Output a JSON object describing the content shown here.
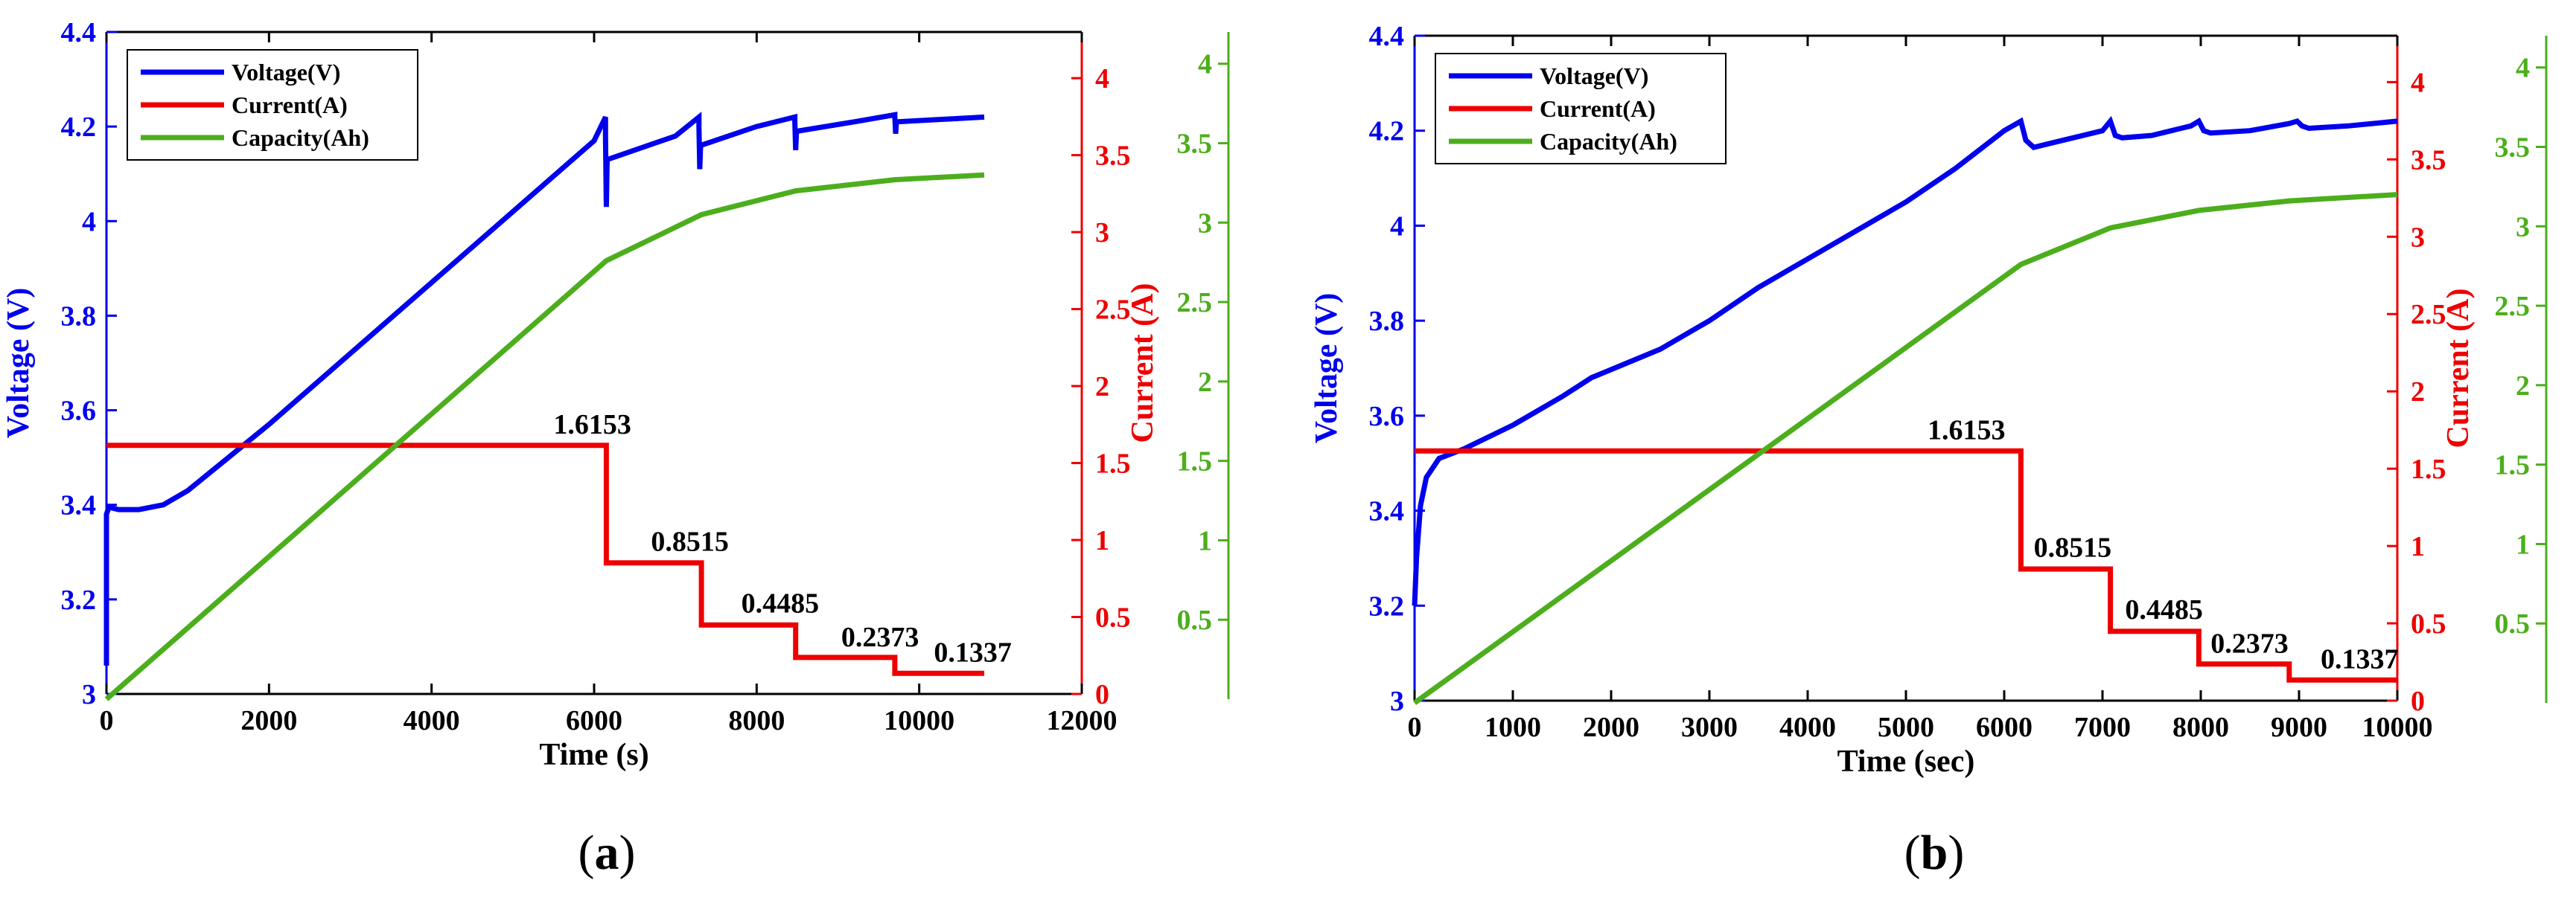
{
  "colors": {
    "voltage": "#0000ee",
    "current": "#ee0000",
    "capacity": "#4cae1c",
    "axis": "#000000"
  },
  "panels": [
    {
      "label_open": "(",
      "label_letter": "a",
      "label_close": ")"
    },
    {
      "label_open": "(",
      "label_letter": "b",
      "label_close": ")"
    }
  ],
  "chart_data": [
    {
      "type": "line",
      "panel": "a",
      "xlabel": "Time (s)",
      "ylabel": "Voltage (V)",
      "y2label": "Current (A)",
      "xlim": [
        0,
        12000
      ],
      "ylim": [
        3,
        4.4
      ],
      "y2lim": [
        0,
        4.3
      ],
      "y3lim": [
        0,
        4.2
      ],
      "xticks": [
        0,
        2000,
        4000,
        6000,
        8000,
        10000,
        12000
      ],
      "xtick_labels": [
        "0",
        "2000",
        "4000",
        "6000",
        "8000",
        "10000",
        "12000"
      ],
      "yticks": [
        3,
        3.2,
        3.4,
        3.6,
        3.8,
        4,
        4.2,
        4.4
      ],
      "ytick_labels": [
        "3",
        "3.2",
        "3.4",
        "3.6",
        "3.8",
        "4",
        "4.2",
        "4.4"
      ],
      "y2ticks": [
        0,
        0.5,
        1,
        1.5,
        2,
        2.5,
        3,
        3.5,
        4
      ],
      "y2tick_labels": [
        "0",
        "0.5",
        "1",
        "1.5",
        "2",
        "2.5",
        "3",
        "3.5",
        "4"
      ],
      "y3ticks": [
        0.5,
        1,
        1.5,
        2,
        2.5,
        3,
        3.5,
        4
      ],
      "y3tick_labels": [
        "0.5",
        "1",
        "1.5",
        "2",
        "2.5",
        "3",
        "3.5",
        "4"
      ],
      "legend": [
        "Voltage(V)",
        "Current(A)",
        "Capacity(Ah)"
      ],
      "legend_position": "top-left",
      "series": [
        {
          "name": "Voltage(V)",
          "axis": "y",
          "x": [
            0,
            0,
            30,
            150,
            400,
            700,
            1000,
            1500,
            2000,
            3000,
            4000,
            5000,
            6000,
            6140,
            6140,
            6150,
            6160,
            7000,
            7290,
            7290,
            7300,
            7310,
            8000,
            8470,
            8470,
            8480,
            8490,
            9200,
            9700,
            9700,
            9710,
            9720,
            10800
          ],
          "y": [
            3.06,
            3.38,
            3.395,
            3.39,
            3.39,
            3.4,
            3.43,
            3.5,
            3.57,
            3.72,
            3.87,
            4.02,
            4.17,
            4.22,
            4.18,
            4.03,
            4.13,
            4.18,
            4.22,
            4.2,
            4.11,
            4.16,
            4.2,
            4.22,
            4.21,
            4.15,
            4.19,
            4.21,
            4.225,
            4.22,
            4.185,
            4.21,
            4.22
          ]
        },
        {
          "name": "Current(A)",
          "axis": "y2",
          "x": [
            0,
            6150,
            6150,
            7320,
            7320,
            8480,
            8480,
            9700,
            9700,
            10800
          ],
          "y": [
            1.6153,
            1.6153,
            0.8515,
            0.8515,
            0.4485,
            0.4485,
            0.2373,
            0.2373,
            0.1337,
            0.1337
          ]
        },
        {
          "name": "Capacity(Ah)",
          "axis": "y3",
          "x": [
            0,
            6150,
            7320,
            8480,
            9700,
            10800
          ],
          "y": [
            0,
            2.76,
            3.05,
            3.2,
            3.27,
            3.3
          ]
        }
      ],
      "annotations": [
        {
          "text": "1.6153",
          "x": 5500,
          "y": 1.69
        },
        {
          "text": "0.8515",
          "x": 6700,
          "y": 0.93
        },
        {
          "text": "0.4485",
          "x": 7810,
          "y": 0.53
        },
        {
          "text": "0.2373",
          "x": 9040,
          "y": 0.31
        },
        {
          "text": "0.1337",
          "x": 10180,
          "y": 0.21
        }
      ]
    },
    {
      "type": "line",
      "panel": "b",
      "xlabel": "Time (sec)",
      "ylabel": "Voltage (V)",
      "y2label": "Current (A)",
      "xlim": [
        0,
        10000
      ],
      "ylim": [
        3,
        4.4
      ],
      "y2lim": [
        0,
        4.3
      ],
      "y3lim": [
        0,
        4.2
      ],
      "xticks": [
        0,
        1000,
        2000,
        3000,
        4000,
        5000,
        6000,
        7000,
        8000,
        9000,
        10000
      ],
      "xtick_labels": [
        "0",
        "1000",
        "2000",
        "3000",
        "4000",
        "5000",
        "6000",
        "7000",
        "8000",
        "9000",
        "10000"
      ],
      "yticks": [
        3,
        3.2,
        3.4,
        3.6,
        3.8,
        4,
        4.2,
        4.4
      ],
      "ytick_labels": [
        "3",
        "3.2",
        "3.4",
        "3.6",
        "3.8",
        "4",
        "4.2",
        "4.4"
      ],
      "y2ticks": [
        0,
        0.5,
        1,
        1.5,
        2,
        2.5,
        3,
        3.5,
        4
      ],
      "y2tick_labels": [
        "0",
        "0.5",
        "1",
        "1.5",
        "2",
        "2.5",
        "3",
        "3.5",
        "4"
      ],
      "y3ticks": [
        0.5,
        1,
        1.5,
        2,
        2.5,
        3,
        3.5,
        4
      ],
      "y3tick_labels": [
        "0.5",
        "1",
        "1.5",
        "2",
        "2.5",
        "3",
        "3.5",
        "4"
      ],
      "legend": [
        "Voltage(V)",
        "Current(A)",
        "Capacity(Ah)"
      ],
      "legend_position": "top-left",
      "series": [
        {
          "name": "Voltage(V)",
          "axis": "y",
          "x": [
            0,
            20,
            60,
            120,
            250,
            500,
            1000,
            1500,
            1800,
            2500,
            3000,
            3500,
            4000,
            4500,
            5000,
            5500,
            6000,
            6170,
            6220,
            6300,
            6500,
            7000,
            7080,
            7130,
            7200,
            7500,
            7900,
            7980,
            8030,
            8100,
            8500,
            8900,
            8980,
            9030,
            9100,
            9500,
            10000
          ],
          "y": [
            3.2,
            3.3,
            3.41,
            3.47,
            3.51,
            3.53,
            3.58,
            3.64,
            3.68,
            3.74,
            3.8,
            3.87,
            3.93,
            3.99,
            4.05,
            4.12,
            4.2,
            4.22,
            4.18,
            4.165,
            4.175,
            4.2,
            4.22,
            4.19,
            4.185,
            4.19,
            4.21,
            4.22,
            4.2,
            4.195,
            4.2,
            4.215,
            4.22,
            4.21,
            4.205,
            4.21,
            4.22
          ]
        },
        {
          "name": "Current(A)",
          "axis": "y2",
          "x": [
            0,
            6170,
            6170,
            7080,
            7080,
            7980,
            7980,
            8900,
            8900,
            10000
          ],
          "y": [
            1.6153,
            1.6153,
            0.8515,
            0.8515,
            0.4485,
            0.4485,
            0.2373,
            0.2373,
            0.1337,
            0.1337
          ]
        },
        {
          "name": "Capacity(Ah)",
          "axis": "y3",
          "x": [
            0,
            6170,
            7080,
            7980,
            8900,
            10000
          ],
          "y": [
            0,
            2.76,
            2.99,
            3.1,
            3.16,
            3.2
          ]
        }
      ],
      "annotations": [
        {
          "text": "1.6153",
          "x": 5220,
          "y": 1.69
        },
        {
          "text": "0.8515",
          "x": 6300,
          "y": 0.93
        },
        {
          "text": "0.4485",
          "x": 7230,
          "y": 0.53
        },
        {
          "text": "0.2373",
          "x": 8100,
          "y": 0.31
        },
        {
          "text": "0.1337",
          "x": 9220,
          "y": 0.21
        }
      ]
    }
  ]
}
